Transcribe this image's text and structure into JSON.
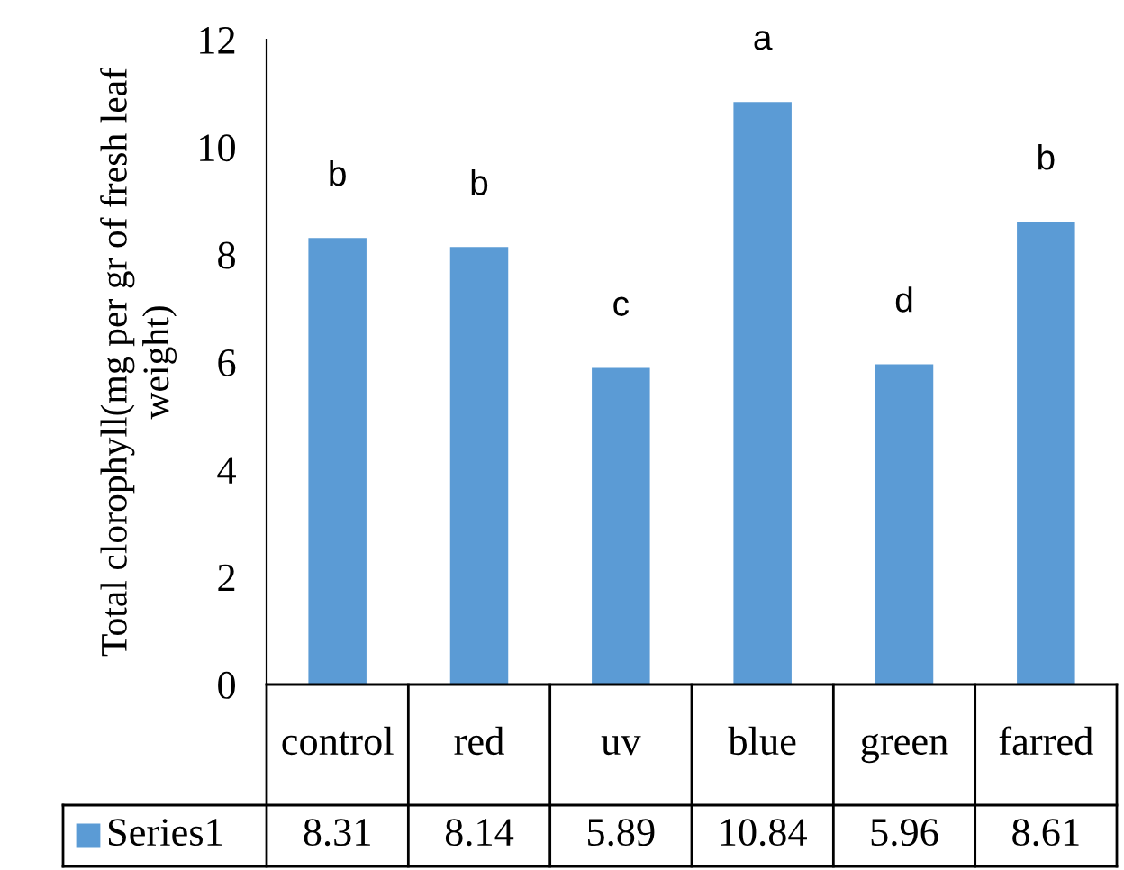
{
  "chart_data": {
    "type": "bar",
    "ylabel": "Total clorophyll(mg per gr of fresh leaf\nweight)",
    "categories": [
      "control",
      "red",
      "uv",
      "blue",
      "green",
      "farred"
    ],
    "series": [
      {
        "name": "Series1",
        "color": "#5b9bd5",
        "values": [
          8.31,
          8.14,
          5.89,
          10.84,
          5.96,
          8.61
        ]
      }
    ],
    "ylim": [
      0,
      12
    ],
    "yticks": [
      0,
      2,
      4,
      6,
      8,
      10,
      12
    ],
    "data_labels": true,
    "grid": false,
    "annotations": [
      {
        "text": "b",
        "x": "control",
        "y": 8.31
      },
      {
        "text": "b",
        "x": "red",
        "y": 8.14
      },
      {
        "text": "c",
        "x": "uv",
        "y": 5.89
      },
      {
        "text": "a",
        "x": "blue",
        "y": 10.84
      },
      {
        "text": "d",
        "x": "green",
        "y": 5.96
      },
      {
        "text": "b",
        "x": "farred",
        "y": 8.61
      }
    ]
  }
}
